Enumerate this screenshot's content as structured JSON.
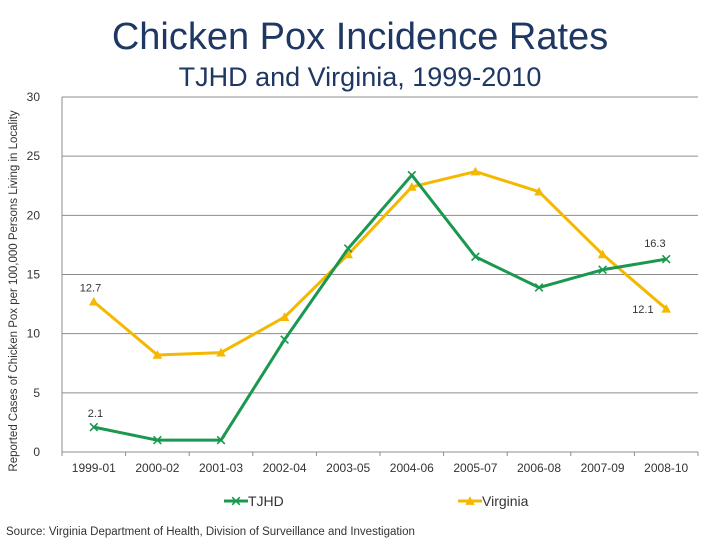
{
  "chart_data": {
    "type": "line",
    "title": "Chicken Pox Incidence Rates",
    "subtitle": "TJHD and Virginia, 1999-2010",
    "ylabel": "Reported Cases of Chicken Pox per 100,000 Persons Living in Locality",
    "xlabel": "",
    "ylim": [
      0,
      30
    ],
    "yticks": [
      0,
      5,
      10,
      15,
      20,
      25,
      30
    ],
    "grid": true,
    "legend_position": "bottom",
    "categories": [
      "1999-01",
      "2000-02",
      "2001-03",
      "2002-04",
      "2003-05",
      "2004-06",
      "2005-07",
      "2006-08",
      "2007-09",
      "2008-10"
    ],
    "series": [
      {
        "name": "TJHD",
        "color": "#1a9850",
        "marker": "x",
        "values": [
          2.1,
          1.0,
          1.0,
          9.5,
          17.2,
          23.4,
          16.5,
          13.9,
          15.4,
          16.3
        ],
        "labels": [
          {
            "index": 0,
            "text": "2.1"
          },
          {
            "index": 9,
            "text": "16.3"
          }
        ]
      },
      {
        "name": "Virginia",
        "color": "#f5b800",
        "marker": "triangle",
        "values": [
          12.7,
          8.2,
          8.4,
          11.4,
          16.7,
          22.4,
          23.7,
          22.0,
          16.7,
          12.1
        ],
        "labels": [
          {
            "index": 0,
            "text": "12.7"
          },
          {
            "index": 9,
            "text": "12.1"
          }
        ]
      }
    ]
  },
  "source": "Source: Virginia Department of Health, Division of Surveillance and Investigation"
}
